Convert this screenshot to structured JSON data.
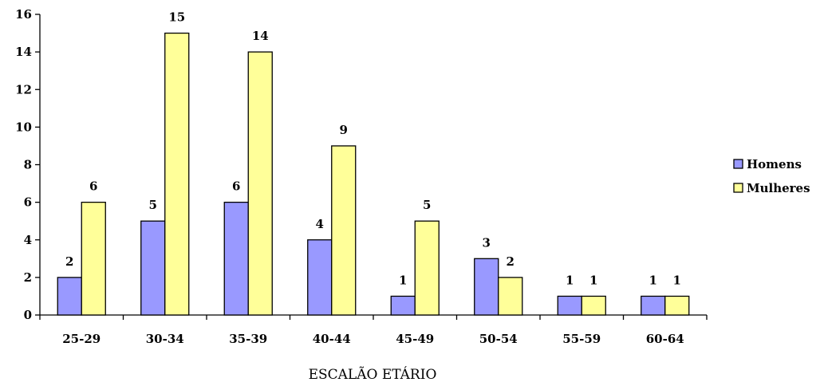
{
  "chart_data": {
    "type": "bar",
    "categories": [
      "25-29",
      "30-34",
      "35-39",
      "40-44",
      "45-49",
      "50-54",
      "55-59",
      "60-64"
    ],
    "series": [
      {
        "name": "Homens",
        "values": [
          2,
          5,
          6,
          4,
          1,
          3,
          1,
          1
        ],
        "color": "#9999ff"
      },
      {
        "name": "Mulheres",
        "values": [
          6,
          15,
          14,
          9,
          5,
          2,
          1,
          1
        ],
        "color": "#ffff99"
      }
    ],
    "xlabel": "ESCALÃO ETÁRIO",
    "ylabel": "",
    "ylim": [
      0,
      16
    ],
    "yticks": [
      0,
      2,
      4,
      6,
      8,
      10,
      12,
      14,
      16
    ],
    "grid": false,
    "legend_position": "right",
    "data_labels": true
  }
}
